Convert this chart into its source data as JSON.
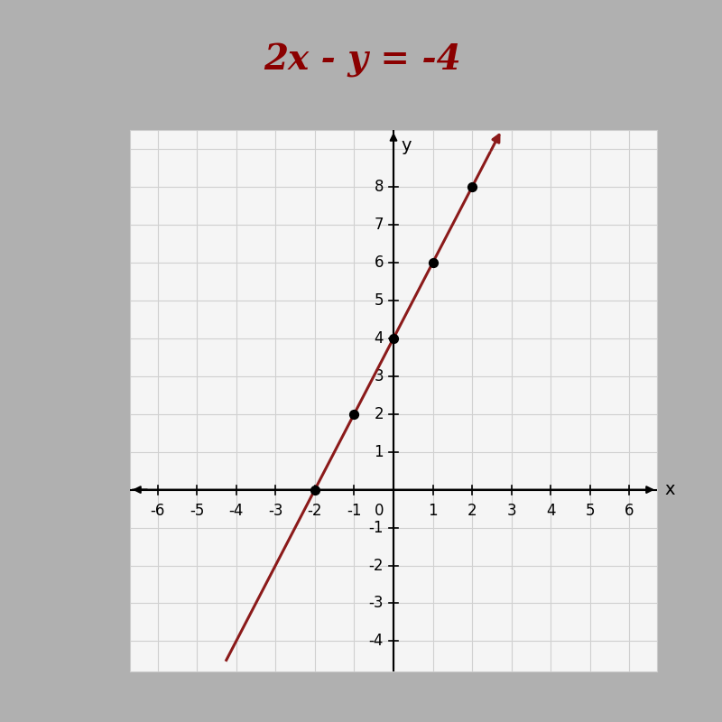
{
  "title": "2x - y = -4",
  "title_color": "#8B0000",
  "title_fontsize": 28,
  "xlim": [
    -6.7,
    6.7
  ],
  "ylim": [
    -4.8,
    9.5
  ],
  "xticks": [
    -6,
    -5,
    -4,
    -3,
    -2,
    -1,
    1,
    2,
    3,
    4,
    5,
    6
  ],
  "yticks": [
    -4,
    -3,
    -2,
    -1,
    1,
    2,
    3,
    4,
    5,
    6,
    7,
    8
  ],
  "xlabel": "x",
  "ylabel": "y",
  "line_color": "#8B1a1a",
  "line_x_start": -4.25,
  "line_x_end": 2.45,
  "slope": 2,
  "intercept": 4,
  "points": [
    [
      -2,
      0
    ],
    [
      -1,
      2
    ],
    [
      0,
      4
    ],
    [
      1,
      6
    ],
    [
      2,
      8
    ]
  ],
  "point_color": "black",
  "point_size": 50,
  "grid_color": "#d0d0d0",
  "background_color": "#ffffff",
  "plot_bg_color": "#f5f5f5",
  "border_color": "#cccccc",
  "arrow_color": "#8B1a1a",
  "tick_fontsize": 12
}
